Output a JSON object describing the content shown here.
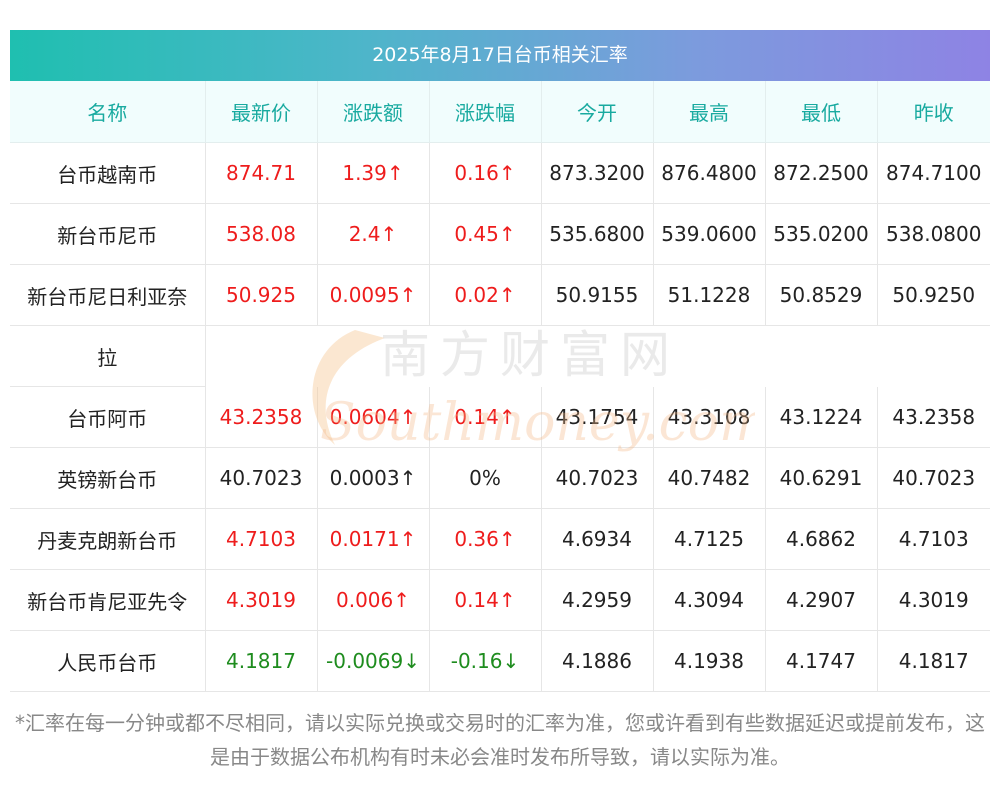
{
  "title": "2025年8月17日台币相关汇率",
  "headers": [
    "名称",
    "最新价",
    "涨跌额",
    "涨跌幅",
    "今开",
    "最高",
    "最低",
    "昨收"
  ],
  "rows": [
    {
      "name": "台币越南币",
      "latest": "874.71",
      "change": "1.39↑",
      "pct": "0.16↑",
      "open": "873.3200",
      "high": "876.4800",
      "low": "872.2500",
      "prev": "874.7100",
      "trend": "up"
    },
    {
      "name": "新台币尼币",
      "latest": "538.08",
      "change": "2.4↑",
      "pct": "0.45↑",
      "open": "535.6800",
      "high": "539.0600",
      "low": "535.0200",
      "prev": "538.0800",
      "trend": "up"
    },
    {
      "name": "新台币尼日利亚奈",
      "name_wrap": "拉",
      "latest": "50.925",
      "change": "0.0095↑",
      "pct": "0.02↑",
      "open": "50.9155",
      "high": "51.1228",
      "low": "50.8529",
      "prev": "50.9250",
      "trend": "up"
    },
    {
      "name": "台币阿币",
      "latest": "43.2358",
      "change": "0.0604↑",
      "pct": "0.14↑",
      "open": "43.1754",
      "high": "43.3108",
      "low": "43.1224",
      "prev": "43.2358",
      "trend": "up"
    },
    {
      "name": "英镑新台币",
      "latest": "40.7023",
      "change": "0.0003↑",
      "pct": "0%",
      "open": "40.7023",
      "high": "40.7482",
      "low": "40.6291",
      "prev": "40.7023",
      "trend": "flat"
    },
    {
      "name": "丹麦克朗新台币",
      "latest": "4.7103",
      "change": "0.0171↑",
      "pct": "0.36↑",
      "open": "4.6934",
      "high": "4.7125",
      "low": "4.6862",
      "prev": "4.7103",
      "trend": "up"
    },
    {
      "name": "新台币肯尼亚先令",
      "latest": "4.3019",
      "change": "0.006↑",
      "pct": "0.14↑",
      "open": "4.2959",
      "high": "4.3094",
      "low": "4.2907",
      "prev": "4.3019",
      "trend": "up"
    },
    {
      "name": "人民币台币",
      "latest": "4.1817",
      "change": "-0.0069↓",
      "pct": "-0.16↓",
      "open": "4.1886",
      "high": "4.1938",
      "low": "4.1747",
      "prev": "4.1817",
      "trend": "down"
    }
  ],
  "watermark": {
    "cn": "南方财富网",
    "en": "Southmoney.com"
  },
  "footnote": "*汇率在每一分钟或都不尽相同，请以实际兑换或交易时的汇率为准，您或许看到有些数据延迟或提前发布，这是由于数据公布机构有时未必会准时发布所导致，请以实际为准。",
  "colors": {
    "up": "#ee1c1c",
    "down": "#1e8c1e",
    "header_text": "#19aaa0",
    "header_bg": "#f1fdfd"
  }
}
